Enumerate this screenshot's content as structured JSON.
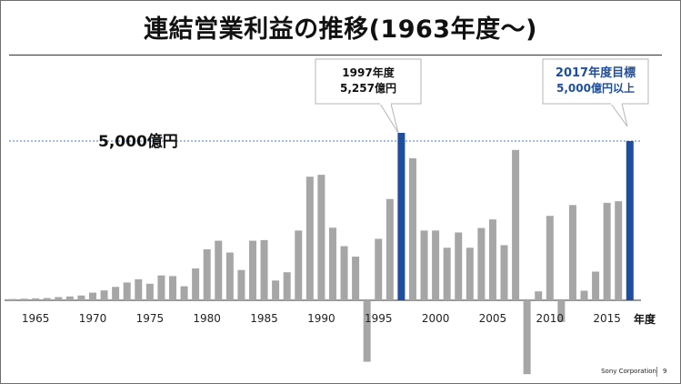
{
  "title": "連結営業利益の推移(1963年度～)",
  "footer": {
    "company": "Sony Corporation",
    "page": "9"
  },
  "colors": {
    "bar": "#a6a6a6",
    "highlight": "#1f4e9e",
    "reference": "#4a78c0",
    "target_text": "#1f4e9e"
  },
  "chart_data": {
    "type": "bar",
    "unit": "億円",
    "xlabel": "年度",
    "x_tick_labels": [
      "1965",
      "1970",
      "1975",
      "1980",
      "1985",
      "1990",
      "1995",
      "2000",
      "2005",
      "2010",
      "2015"
    ],
    "categories": [
      1963,
      1964,
      1965,
      1966,
      1967,
      1968,
      1969,
      1970,
      1971,
      1972,
      1973,
      1974,
      1975,
      1976,
      1977,
      1978,
      1979,
      1980,
      1981,
      1982,
      1983,
      1984,
      1985,
      1986,
      1987,
      1988,
      1989,
      1990,
      1991,
      1992,
      1993,
      1994,
      1995,
      1996,
      1997,
      1998,
      1999,
      2000,
      2001,
      2002,
      2003,
      2004,
      2005,
      2006,
      2007,
      2008,
      2009,
      2010,
      2011,
      2012,
      2013,
      2014,
      2015,
      2016,
      2017
    ],
    "values": [
      40,
      50,
      60,
      70,
      100,
      120,
      150,
      240,
      310,
      420,
      560,
      660,
      520,
      780,
      760,
      440,
      1000,
      1600,
      1870,
      1500,
      950,
      1870,
      1890,
      620,
      880,
      2190,
      3880,
      3940,
      2280,
      1700,
      1370,
      -1930,
      1930,
      3180,
      5257,
      4460,
      2190,
      2190,
      1650,
      2130,
      1650,
      2270,
      2540,
      1730,
      4720,
      -2320,
      280,
      2650,
      -680,
      2990,
      300,
      900,
      3060,
      3110,
      5000
    ],
    "highlight_categories": [
      1997,
      2017
    ],
    "reference_line": {
      "value": 5000,
      "label": "5,000億円"
    },
    "callouts": [
      {
        "category": 1997,
        "lines": [
          "1997年度",
          "5,257億円"
        ]
      },
      {
        "category": 2017,
        "lines": [
          "2017年度目標",
          "5,000億円以上"
        ]
      }
    ]
  }
}
